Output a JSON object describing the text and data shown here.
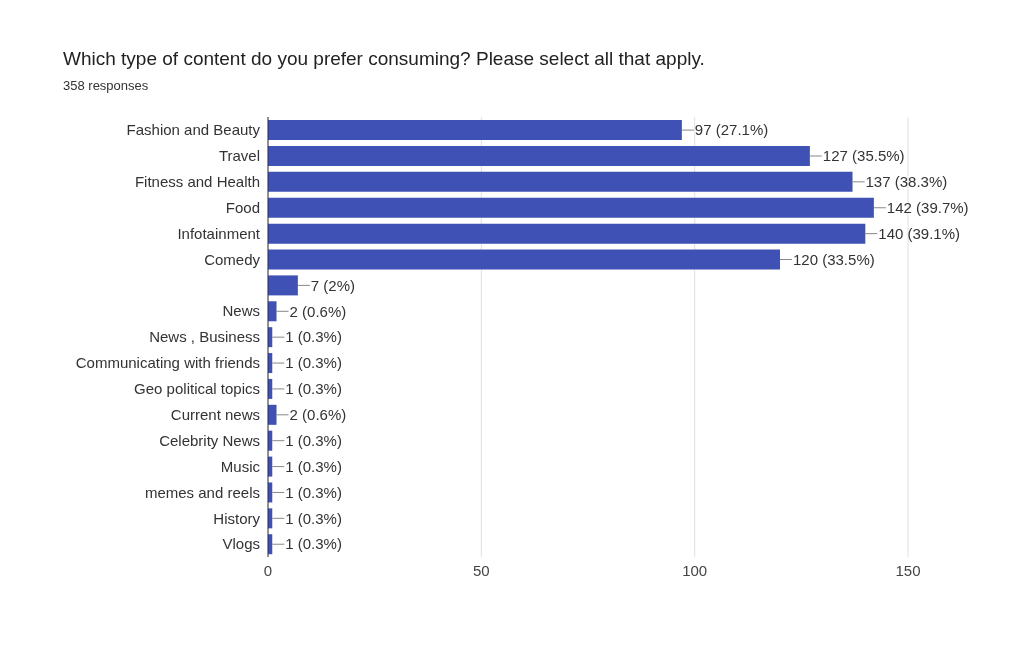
{
  "chart_data": {
    "type": "bar",
    "orientation": "horizontal",
    "title": "Which type of content do you prefer consuming? Please select all that apply.",
    "subtitle": "358 responses",
    "categories": [
      "Fashion and Beauty",
      "Travel",
      "Fitness and Health",
      "Food",
      "Infotainment",
      "Comedy",
      null,
      "News",
      "News , Business",
      "Communicating with friends",
      "Geo political topics",
      "Current news",
      "Celebrity News",
      "Music",
      "memes and reels",
      "History",
      "Vlogs"
    ],
    "values": [
      97,
      127,
      137,
      142,
      140,
      120,
      7,
      2,
      1,
      1,
      1,
      2,
      1,
      1,
      1,
      1,
      1
    ],
    "value_labels": [
      "97 (27.1%)",
      "127 (35.5%)",
      "137 (38.3%)",
      "142 (39.7%)",
      "140 (39.1%)",
      "120 (33.5%)",
      "7 (2%)",
      "2 (0.6%)",
      "1 (0.3%)",
      "1 (0.3%)",
      "1 (0.3%)",
      "2 (0.6%)",
      "1 (0.3%)",
      "1 (0.3%)",
      "1 (0.3%)",
      "1 (0.3%)",
      "1 (0.3%)"
    ],
    "color": "#3f51b5",
    "xlim": [
      0,
      150
    ],
    "xticks": [
      0,
      50,
      100,
      150
    ],
    "grid": "x"
  }
}
